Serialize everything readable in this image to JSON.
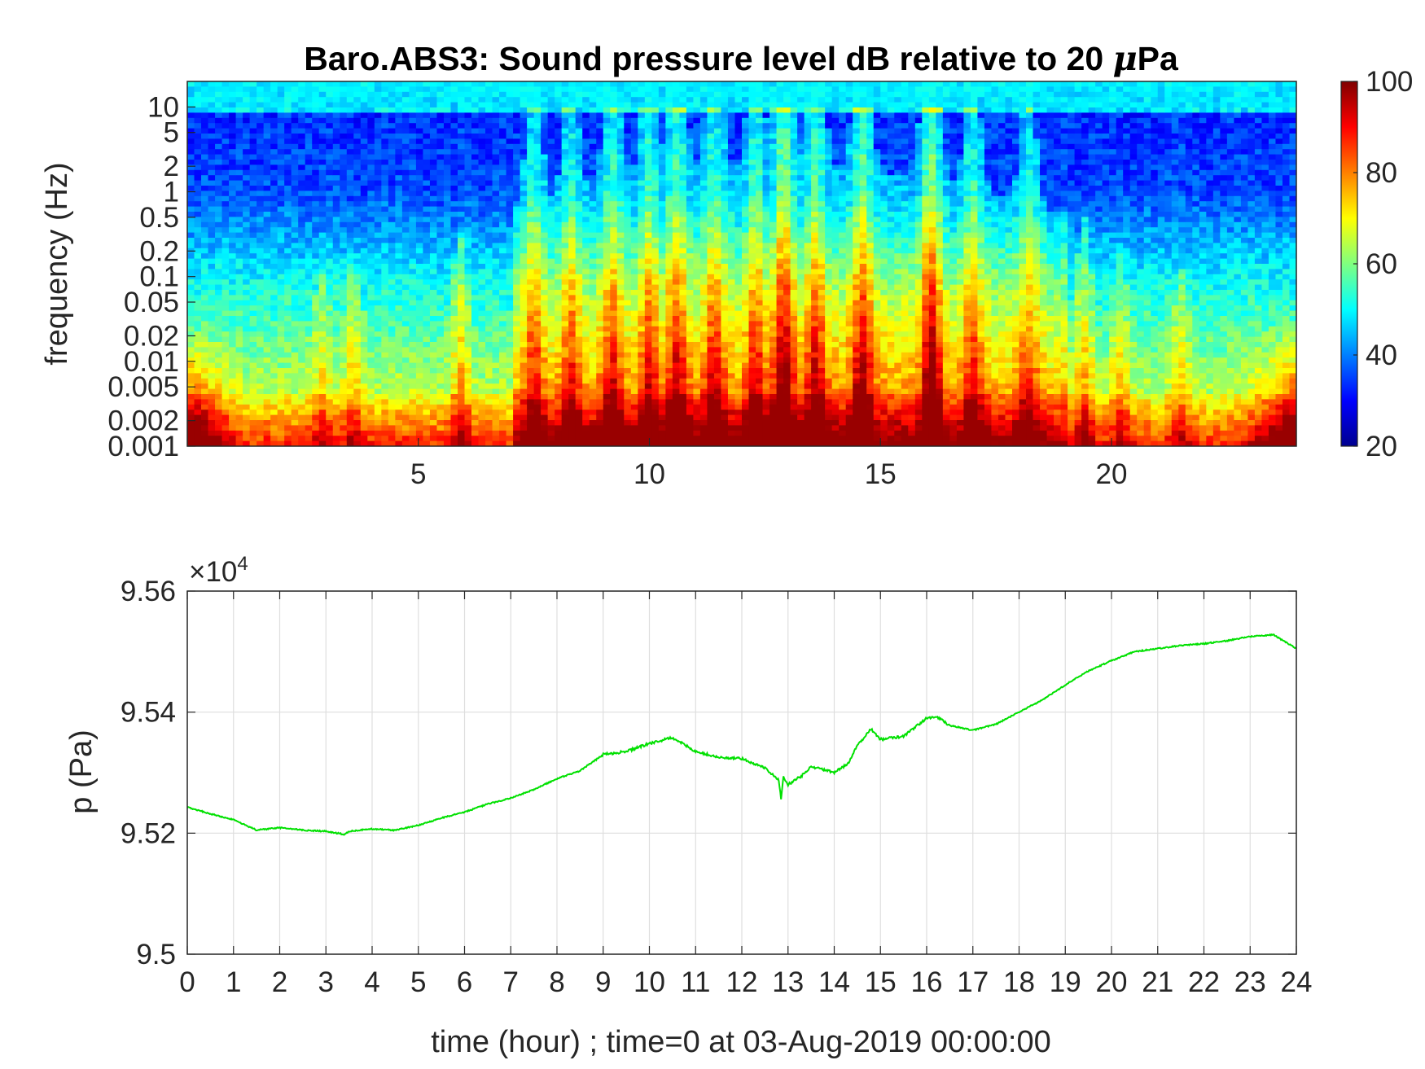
{
  "figure": {
    "title_prefix": "Baro.ABS3: Sound pressure level dB relative to 20 ",
    "title_mu": "μ",
    "title_suffix": "Pa"
  },
  "chart_data": [
    {
      "type": "heatmap",
      "title": "Baro.ABS3: Sound pressure level dB relative to 20 μPa",
      "ylabel": "frequency (Hz)",
      "xlabel": "",
      "scale_y": "log",
      "xlim": [
        0,
        24
      ],
      "ylim": [
        0.001,
        20
      ],
      "x_ticks": [
        5,
        10,
        15,
        20
      ],
      "x_tick_labels": [
        "5",
        "10",
        "15",
        "20"
      ],
      "y_ticks": [
        0.001,
        0.002,
        0.005,
        0.01,
        0.02,
        0.05,
        0.1,
        0.2,
        0.5,
        1,
        2,
        5,
        10
      ],
      "y_tick_labels": [
        "0.001",
        "0.002",
        "0.005",
        "0.01",
        "0.02",
        "0.05",
        "0.1",
        "0.2",
        "0.5",
        "1",
        "2",
        "5",
        "10"
      ],
      "colormap": "jet",
      "colorbar": {
        "clim": [
          20,
          100
        ],
        "ticks": [
          20,
          40,
          60,
          80,
          100
        ],
        "tick_labels": [
          "20",
          "40",
          "60",
          "80",
          "100"
        ]
      },
      "grid": false,
      "activity_peaks": [
        {
          "t": 2.9,
          "amp": 0.3
        },
        {
          "t": 3.6,
          "amp": 0.35
        },
        {
          "t": 5.9,
          "amp": 0.45
        },
        {
          "t": 7.5,
          "amp": 0.6
        },
        {
          "t": 8.3,
          "amp": 0.55
        },
        {
          "t": 9.2,
          "amp": 0.65
        },
        {
          "t": 10.0,
          "amp": 0.6
        },
        {
          "t": 10.6,
          "amp": 0.7
        },
        {
          "t": 11.4,
          "amp": 0.6
        },
        {
          "t": 12.3,
          "amp": 0.55
        },
        {
          "t": 12.9,
          "amp": 0.9
        },
        {
          "t": 13.6,
          "amp": 0.7
        },
        {
          "t": 14.6,
          "amp": 0.8
        },
        {
          "t": 16.1,
          "amp": 1.0
        },
        {
          "t": 17.0,
          "amp": 0.55
        },
        {
          "t": 18.2,
          "amp": 0.5
        },
        {
          "t": 19.4,
          "amp": 0.5
        },
        {
          "t": 20.2,
          "amp": 0.35
        },
        {
          "t": 21.5,
          "amp": 0.3
        }
      ],
      "colors": {
        "low": "#00008f",
        "high": "#800000",
        "cyan": "#00ffff"
      }
    },
    {
      "type": "line",
      "title": "",
      "xlabel": "time (hour) ; time=0 at 03-Aug-2019 00:00:00",
      "ylabel": "p (Pa)",
      "xlim": [
        0,
        24
      ],
      "ylim": [
        95000,
        95600
      ],
      "x_ticks": [
        0,
        1,
        2,
        3,
        4,
        5,
        6,
        7,
        8,
        9,
        10,
        11,
        12,
        13,
        14,
        15,
        16,
        17,
        18,
        19,
        20,
        21,
        22,
        23,
        24
      ],
      "y_ticks": [
        95000,
        95200,
        95400,
        95600
      ],
      "y_tick_labels": [
        "9.5",
        "9.52",
        "9.54",
        "9.56"
      ],
      "y_exponent_prefix": "×10",
      "y_exponent_power": "4",
      "grid": true,
      "series": [
        {
          "color": "#00e000",
          "x": [
            0,
            0.5,
            1,
            1.5,
            2,
            2.5,
            3,
            3.4,
            3.5,
            4,
            4.5,
            5,
            5.5,
            6,
            6.5,
            7,
            7.5,
            8,
            8.5,
            9,
            9.5,
            10,
            10.5,
            11,
            11.5,
            12,
            12.5,
            12.8,
            12.85,
            12.9,
            13,
            13.3,
            13.5,
            14,
            14.3,
            14.5,
            14.8,
            15,
            15.5,
            16,
            16.2,
            16.5,
            17,
            17.5,
            18,
            18.5,
            19,
            19.5,
            20,
            20.5,
            21,
            21.5,
            22,
            22.5,
            23,
            23.5,
            24
          ],
          "y": [
            95243,
            95232,
            95222,
            95205,
            95209,
            95205,
            95203,
            95198,
            95203,
            95207,
            95205,
            95213,
            95225,
            95235,
            95248,
            95258,
            95272,
            95290,
            95303,
            95330,
            95335,
            95348,
            95358,
            95335,
            95325,
            95323,
            95308,
            95288,
            95255,
            95292,
            95280,
            95295,
            95310,
            95300,
            95315,
            95345,
            95372,
            95355,
            95360,
            95390,
            95393,
            95378,
            95370,
            95380,
            95400,
            95420,
            95445,
            95468,
            95485,
            95500,
            95505,
            95510,
            95513,
            95518,
            95525,
            95528,
            95505
          ]
        }
      ]
    }
  ]
}
